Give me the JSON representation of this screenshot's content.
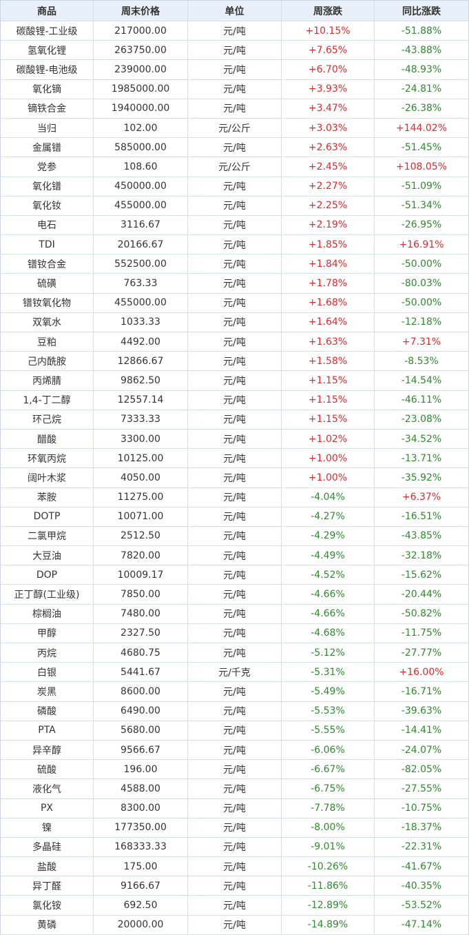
{
  "table": {
    "header": [
      "商品",
      "周末价格",
      "单位",
      "周涨跌",
      "同比涨跌"
    ],
    "rows": [
      [
        "碳酸锂-工业级",
        "217000.00",
        "元/吨",
        "+10.15%",
        "-51.88%"
      ],
      [
        "氢氧化锂",
        "263750.00",
        "元/吨",
        "+7.65%",
        "-43.88%"
      ],
      [
        "碳酸锂-电池级",
        "239000.00",
        "元/吨",
        "+6.70%",
        "-48.93%"
      ],
      [
        "氧化镝",
        "1985000.00",
        "元/吨",
        "+3.93%",
        "-24.81%"
      ],
      [
        "镝铁合金",
        "1940000.00",
        "元/吨",
        "+3.47%",
        "-26.38%"
      ],
      [
        "当归",
        "102.00",
        "元/公斤",
        "+3.03%",
        "+144.02%"
      ],
      [
        "金属镨",
        "585000.00",
        "元/吨",
        "+2.63%",
        "-51.45%"
      ],
      [
        "党参",
        "108.60",
        "元/公斤",
        "+2.45%",
        "+108.05%"
      ],
      [
        "氧化镨",
        "450000.00",
        "元/吨",
        "+2.27%",
        "-51.09%"
      ],
      [
        "氧化钕",
        "455000.00",
        "元/吨",
        "+2.25%",
        "-51.34%"
      ],
      [
        "电石",
        "3116.67",
        "元/吨",
        "+2.19%",
        "-26.95%"
      ],
      [
        "TDI",
        "20166.67",
        "元/吨",
        "+1.85%",
        "+16.91%"
      ],
      [
        "镨钕合金",
        "552500.00",
        "元/吨",
        "+1.84%",
        "-50.00%"
      ],
      [
        "硫磺",
        "763.33",
        "元/吨",
        "+1.78%",
        "-80.03%"
      ],
      [
        "镨钕氧化物",
        "455000.00",
        "元/吨",
        "+1.68%",
        "-50.00%"
      ],
      [
        "双氧水",
        "1033.33",
        "元/吨",
        "+1.64%",
        "-12.18%"
      ],
      [
        "豆粕",
        "4492.00",
        "元/吨",
        "+1.63%",
        "+7.31%"
      ],
      [
        "己内酰胺",
        "12866.67",
        "元/吨",
        "+1.58%",
        "-8.53%"
      ],
      [
        "丙烯腈",
        "9862.50",
        "元/吨",
        "+1.15%",
        "-14.54%"
      ],
      [
        "1,4-丁二醇",
        "12557.14",
        "元/吨",
        "+1.15%",
        "-46.11%"
      ],
      [
        "环己烷",
        "7333.33",
        "元/吨",
        "+1.15%",
        "-23.08%"
      ],
      [
        "醋酸",
        "3300.00",
        "元/吨",
        "+1.02%",
        "-34.52%"
      ],
      [
        "环氧丙烷",
        "10125.00",
        "元/吨",
        "+1.00%",
        "-13.71%"
      ],
      [
        "阔叶木浆",
        "4050.00",
        "元/吨",
        "+1.00%",
        "-35.92%"
      ],
      [
        "苯胺",
        "11275.00",
        "元/吨",
        "-4.04%",
        "+6.37%"
      ],
      [
        "DOTP",
        "10071.00",
        "元/吨",
        "-4.27%",
        "-16.51%"
      ],
      [
        "二氯甲烷",
        "2512.50",
        "元/吨",
        "-4.29%",
        "-43.85%"
      ],
      [
        "大豆油",
        "7820.00",
        "元/吨",
        "-4.49%",
        "-32.18%"
      ],
      [
        "DOP",
        "10009.17",
        "元/吨",
        "-4.52%",
        "-15.62%"
      ],
      [
        "正丁醇(工业级)",
        "7850.00",
        "元/吨",
        "-4.66%",
        "-20.44%"
      ],
      [
        "棕榈油",
        "7480.00",
        "元/吨",
        "-4.66%",
        "-50.82%"
      ],
      [
        "甲醇",
        "2327.50",
        "元/吨",
        "-4.68%",
        "-11.75%"
      ],
      [
        "丙烷",
        "4680.75",
        "元/吨",
        "-5.12%",
        "-27.77%"
      ],
      [
        "白银",
        "5441.67",
        "元/千克",
        "-5.31%",
        "+16.00%"
      ],
      [
        "炭黑",
        "8600.00",
        "元/吨",
        "-5.49%",
        "-16.71%"
      ],
      [
        "磷酸",
        "6490.00",
        "元/吨",
        "-5.53%",
        "-39.63%"
      ],
      [
        "PTA",
        "5680.00",
        "元/吨",
        "-5.55%",
        "-14.41%"
      ],
      [
        "异辛醇",
        "9566.67",
        "元/吨",
        "-6.06%",
        "-24.07%"
      ],
      [
        "硫酸",
        "196.00",
        "元/吨",
        "-6.67%",
        "-82.05%"
      ],
      [
        "液化气",
        "4588.00",
        "元/吨",
        "-6.75%",
        "-27.55%"
      ],
      [
        "PX",
        "8300.00",
        "元/吨",
        "-7.78%",
        "-10.75%"
      ],
      [
        "镍",
        "177350.00",
        "元/吨",
        "-8.00%",
        "-18.37%"
      ],
      [
        "多晶硅",
        "168333.33",
        "元/吨",
        "-9.01%",
        "-22.31%"
      ],
      [
        "盐酸",
        "175.00",
        "元/吨",
        "-10.26%",
        "-41.67%"
      ],
      [
        "异丁醛",
        "9166.67",
        "元/吨",
        "-11.86%",
        "-40.35%"
      ],
      [
        "氯化铵",
        "692.50",
        "元/吨",
        "-12.89%",
        "-53.52%"
      ],
      [
        "黄磷",
        "20000.00",
        "元/吨",
        "-14.89%",
        "-47.14%"
      ]
    ]
  }
}
